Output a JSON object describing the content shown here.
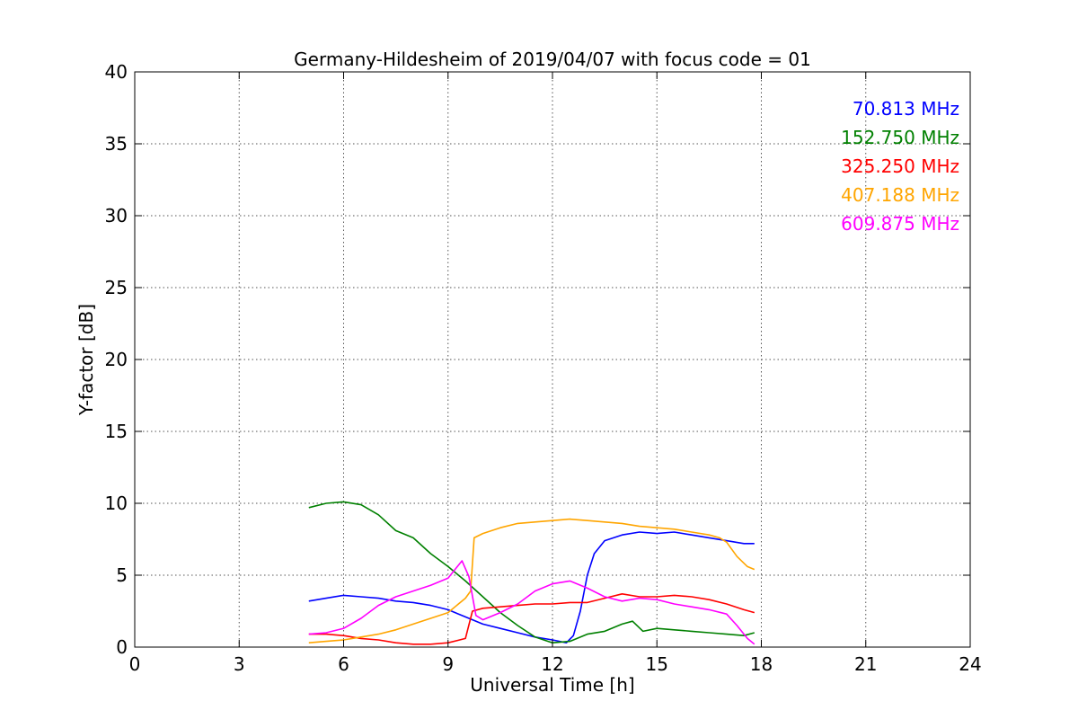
{
  "chart_data": {
    "type": "line",
    "title": "Germany-Hildesheim of 2019/04/07 with focus code = 01",
    "xlabel": "Universal Time [h]",
    "ylabel": "Y-factor [dB]",
    "xlim": [
      0,
      24
    ],
    "ylim": [
      0,
      40
    ],
    "xticks": [
      "0",
      "3",
      "6",
      "9",
      "12",
      "15",
      "18",
      "21",
      "24"
    ],
    "yticks": [
      "0",
      "5",
      "10",
      "15",
      "20",
      "25",
      "30",
      "35",
      "40"
    ],
    "grid": true,
    "legend_position": "top-right",
    "series": [
      {
        "name": "70.813 MHz",
        "color": "#0000ff",
        "x": [
          5.0,
          5.5,
          6.0,
          6.5,
          7.0,
          7.5,
          8.0,
          8.5,
          9.0,
          9.5,
          10.0,
          10.5,
          11.0,
          11.5,
          12.0,
          12.4,
          12.6,
          12.8,
          13.0,
          13.2,
          13.5,
          14.0,
          14.5,
          15.0,
          15.5,
          16.0,
          16.5,
          17.0,
          17.5,
          17.8
        ],
        "y": [
          3.2,
          3.4,
          3.6,
          3.5,
          3.4,
          3.2,
          3.1,
          2.9,
          2.6,
          2.1,
          1.6,
          1.3,
          1.0,
          0.7,
          0.5,
          0.3,
          0.8,
          2.5,
          5.0,
          6.5,
          7.4,
          7.8,
          8.0,
          7.9,
          8.0,
          7.8,
          7.6,
          7.4,
          7.2,
          7.2
        ]
      },
      {
        "name": "152.750 MHz",
        "color": "#008000",
        "x": [
          5.0,
          5.5,
          6.0,
          6.5,
          7.0,
          7.5,
          8.0,
          8.5,
          9.0,
          9.5,
          10.0,
          10.5,
          11.0,
          11.5,
          12.0,
          12.5,
          13.0,
          13.5,
          14.0,
          14.3,
          14.6,
          15.0,
          15.5,
          16.0,
          16.5,
          17.0,
          17.5,
          17.8
        ],
        "y": [
          9.7,
          10.0,
          10.1,
          9.9,
          9.2,
          8.1,
          7.6,
          6.5,
          5.6,
          4.6,
          3.5,
          2.4,
          1.5,
          0.7,
          0.3,
          0.4,
          0.9,
          1.1,
          1.6,
          1.8,
          1.1,
          1.3,
          1.2,
          1.1,
          1.0,
          0.9,
          0.8,
          1.0
        ]
      },
      {
        "name": "325.250 MHz",
        "color": "#ff0000",
        "x": [
          5.0,
          5.5,
          6.0,
          6.5,
          7.0,
          7.5,
          8.0,
          8.5,
          9.0,
          9.5,
          9.7,
          10.0,
          10.5,
          11.0,
          11.5,
          12.0,
          12.5,
          13.0,
          13.5,
          14.0,
          14.5,
          15.0,
          15.5,
          16.0,
          16.5,
          17.0,
          17.5,
          17.8
        ],
        "y": [
          0.9,
          0.9,
          0.8,
          0.6,
          0.5,
          0.3,
          0.2,
          0.2,
          0.3,
          0.6,
          2.5,
          2.7,
          2.8,
          2.9,
          3.0,
          3.0,
          3.1,
          3.1,
          3.4,
          3.7,
          3.5,
          3.5,
          3.6,
          3.5,
          3.3,
          3.0,
          2.6,
          2.4
        ]
      },
      {
        "name": "407.188 MHz",
        "color": "#ffa500",
        "x": [
          5.0,
          5.5,
          6.0,
          6.5,
          7.0,
          7.5,
          8.0,
          8.5,
          9.0,
          9.5,
          9.65,
          9.75,
          10.0,
          10.5,
          11.0,
          11.5,
          12.0,
          12.5,
          13.0,
          13.5,
          14.0,
          14.5,
          15.0,
          15.5,
          16.0,
          16.5,
          16.8,
          17.0,
          17.3,
          17.6,
          17.8
        ],
        "y": [
          0.3,
          0.4,
          0.5,
          0.7,
          0.9,
          1.2,
          1.6,
          2.0,
          2.4,
          3.4,
          3.9,
          7.6,
          7.9,
          8.3,
          8.6,
          8.7,
          8.8,
          8.9,
          8.8,
          8.7,
          8.6,
          8.4,
          8.3,
          8.2,
          8.0,
          7.8,
          7.6,
          7.3,
          6.3,
          5.6,
          5.4
        ]
      },
      {
        "name": "609.875 MHz",
        "color": "#ff00ff",
        "x": [
          5.0,
          5.5,
          6.0,
          6.5,
          7.0,
          7.5,
          8.0,
          8.5,
          9.0,
          9.2,
          9.4,
          9.6,
          9.8,
          10.0,
          10.5,
          11.0,
          11.5,
          12.0,
          12.5,
          13.0,
          13.5,
          14.0,
          14.5,
          15.0,
          15.5,
          16.0,
          16.5,
          17.0,
          17.3,
          17.6,
          17.8
        ],
        "y": [
          0.9,
          1.0,
          1.3,
          2.0,
          2.9,
          3.5,
          3.9,
          4.3,
          4.8,
          5.4,
          6.0,
          4.9,
          2.2,
          1.9,
          2.4,
          3.0,
          3.9,
          4.4,
          4.6,
          4.1,
          3.5,
          3.2,
          3.4,
          3.3,
          3.0,
          2.8,
          2.6,
          2.3,
          1.5,
          0.6,
          0.2
        ]
      }
    ]
  }
}
